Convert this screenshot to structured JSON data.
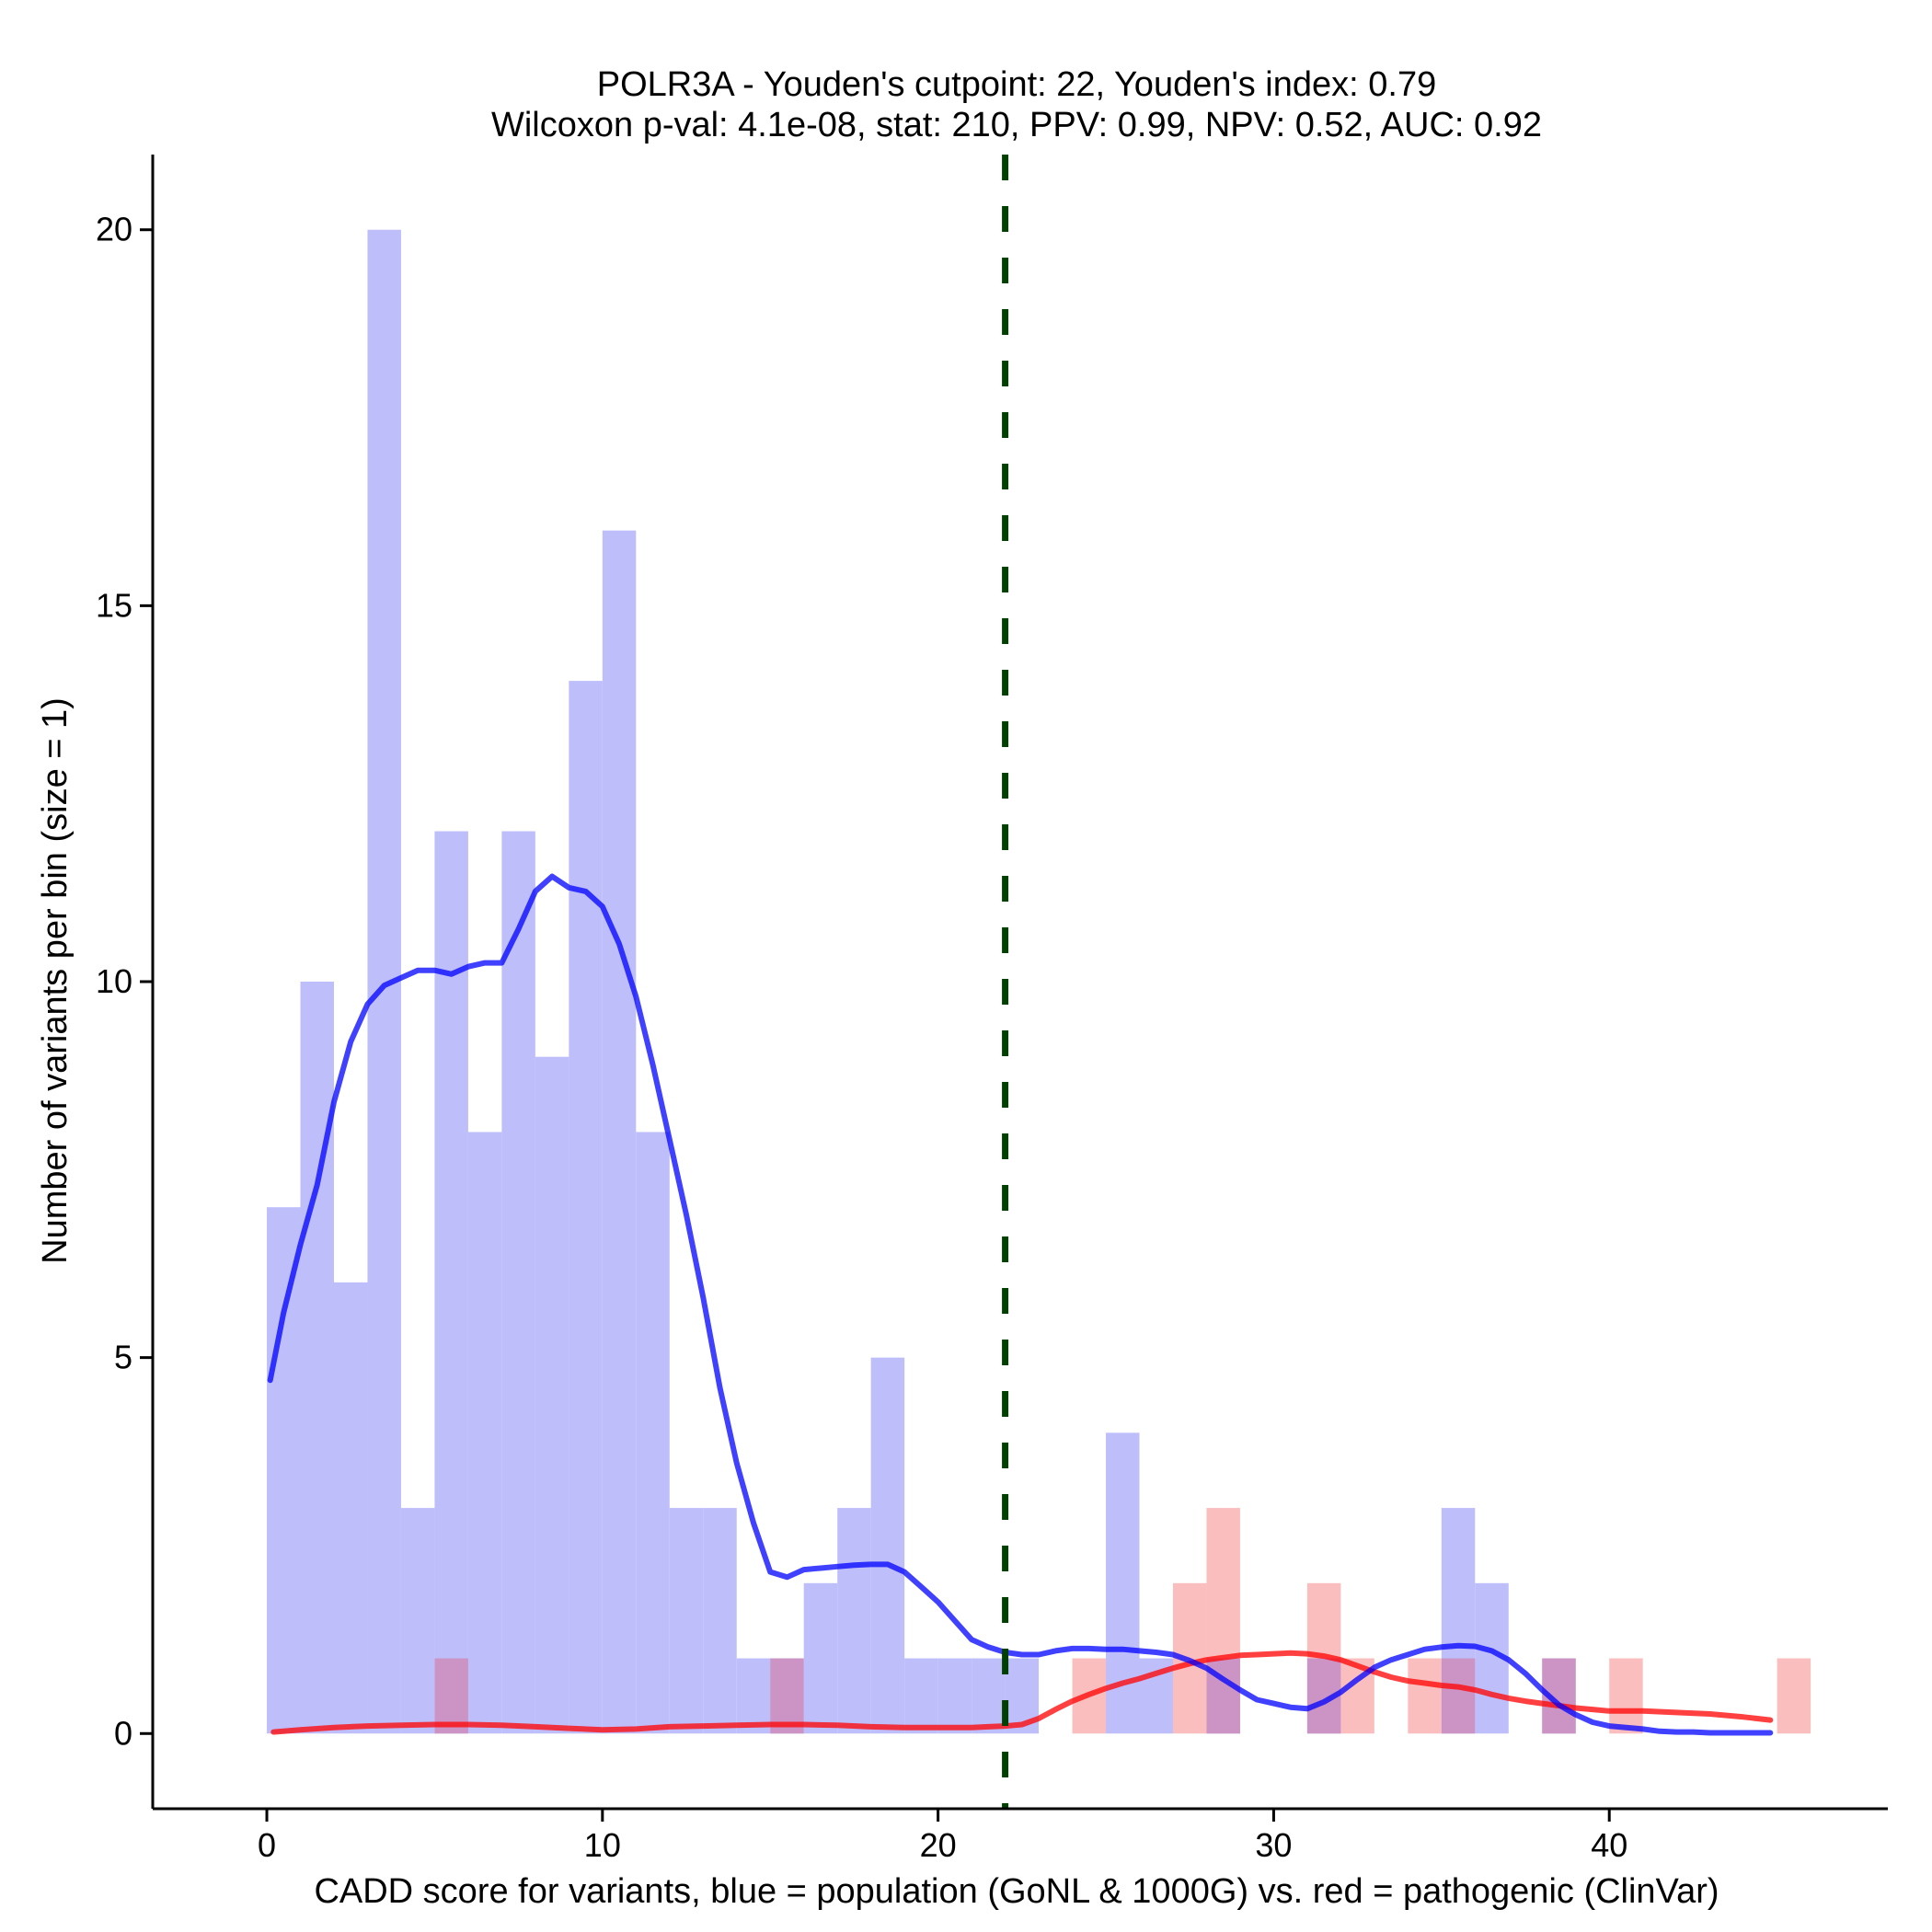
{
  "chart_data": {
    "type": "bar",
    "title": "POLR3A - Youden's cutpoint: 22, Youden's index: 0.79",
    "subtitle": "Wilcoxon p-val: 4.1e-08, stat: 210, PPV: 0.99, NPV: 0.52, AUC: 0.92",
    "xlabel": "CADD score for variants, blue = population (GoNL & 1000G) vs. red = pathogenic (ClinVar)",
    "ylabel": "Number of variants per bin (size = 1)",
    "xlim": [
      -3.4,
      48.3
    ],
    "ylim": [
      -1,
      21
    ],
    "xticks": [
      0,
      10,
      20,
      30,
      40
    ],
    "yticks": [
      0,
      5,
      10,
      15,
      20
    ],
    "bin_width": 1,
    "cutpoint": 22,
    "colors": {
      "population": "#0000ff",
      "pathogenic": "#ff0000",
      "cutpoint": "#004000",
      "population_fill": "#bebefb",
      "pathogenic_fill": "#fbbebe",
      "overlap_fill": "#cc94c4"
    },
    "series": [
      {
        "name": "population (GoNL & 1000G)",
        "bins": [
          [
            0,
            7
          ],
          [
            1,
            10
          ],
          [
            2,
            6
          ],
          [
            3,
            20
          ],
          [
            4,
            3
          ],
          [
            5,
            12
          ],
          [
            6,
            8
          ],
          [
            7,
            12
          ],
          [
            8,
            9
          ],
          [
            9,
            14
          ],
          [
            10,
            16
          ],
          [
            11,
            8
          ],
          [
            12,
            3
          ],
          [
            13,
            3
          ],
          [
            14,
            1
          ],
          [
            15,
            1
          ],
          [
            16,
            2
          ],
          [
            17,
            3
          ],
          [
            18,
            5
          ],
          [
            19,
            1
          ],
          [
            20,
            1
          ],
          [
            21,
            1
          ],
          [
            22,
            1
          ],
          [
            25,
            4
          ],
          [
            26,
            1
          ],
          [
            28,
            1
          ],
          [
            31,
            1
          ],
          [
            35,
            3
          ],
          [
            36,
            2
          ],
          [
            38,
            1
          ]
        ],
        "density": [
          [
            0.1,
            4.7
          ],
          [
            0.5,
            5.6
          ],
          [
            1,
            6.5
          ],
          [
            1.5,
            7.3
          ],
          [
            2,
            8.4
          ],
          [
            2.5,
            9.2
          ],
          [
            3,
            9.7
          ],
          [
            3.5,
            9.95
          ],
          [
            4,
            10.05
          ],
          [
            4.5,
            10.15
          ],
          [
            5,
            10.15
          ],
          [
            5.5,
            10.1
          ],
          [
            6,
            10.2
          ],
          [
            6.5,
            10.25
          ],
          [
            7,
            10.25
          ],
          [
            7.5,
            10.7
          ],
          [
            8,
            11.2
          ],
          [
            8.5,
            11.4
          ],
          [
            9,
            11.25
          ],
          [
            9.5,
            11.2
          ],
          [
            10,
            11.0
          ],
          [
            10.5,
            10.5
          ],
          [
            11,
            9.8
          ],
          [
            11.5,
            8.9
          ],
          [
            12,
            7.9
          ],
          [
            12.5,
            6.9
          ],
          [
            13,
            5.8
          ],
          [
            13.5,
            4.6
          ],
          [
            14,
            3.6
          ],
          [
            14.5,
            2.8
          ],
          [
            15,
            2.15
          ],
          [
            15.5,
            2.08
          ],
          [
            16,
            2.18
          ],
          [
            16.5,
            2.2
          ],
          [
            17,
            2.22
          ],
          [
            17.5,
            2.24
          ],
          [
            18,
            2.25
          ],
          [
            18.5,
            2.25
          ],
          [
            19,
            2.15
          ],
          [
            19.5,
            1.95
          ],
          [
            20,
            1.75
          ],
          [
            20.5,
            1.5
          ],
          [
            21,
            1.25
          ],
          [
            21.5,
            1.15
          ],
          [
            22,
            1.08
          ],
          [
            22.5,
            1.05
          ],
          [
            23,
            1.05
          ],
          [
            23.5,
            1.1
          ],
          [
            24,
            1.13
          ],
          [
            24.5,
            1.13
          ],
          [
            25,
            1.12
          ],
          [
            25.5,
            1.12
          ],
          [
            26,
            1.1
          ],
          [
            26.5,
            1.08
          ],
          [
            27,
            1.05
          ],
          [
            27.5,
            0.97
          ],
          [
            28,
            0.87
          ],
          [
            28.5,
            0.72
          ],
          [
            29,
            0.58
          ],
          [
            29.5,
            0.45
          ],
          [
            30,
            0.4
          ],
          [
            30.5,
            0.35
          ],
          [
            31,
            0.33
          ],
          [
            31.5,
            0.42
          ],
          [
            32,
            0.55
          ],
          [
            32.5,
            0.72
          ],
          [
            33,
            0.88
          ],
          [
            33.5,
            0.98
          ],
          [
            34,
            1.05
          ],
          [
            34.5,
            1.12
          ],
          [
            35,
            1.15
          ],
          [
            35.5,
            1.17
          ],
          [
            36,
            1.16
          ],
          [
            36.5,
            1.1
          ],
          [
            37,
            0.98
          ],
          [
            37.5,
            0.8
          ],
          [
            38,
            0.58
          ],
          [
            38.5,
            0.38
          ],
          [
            39,
            0.25
          ],
          [
            39.5,
            0.15
          ],
          [
            40,
            0.1
          ],
          [
            40.5,
            0.08
          ],
          [
            41,
            0.06
          ],
          [
            41.5,
            0.03
          ],
          [
            42,
            0.02
          ],
          [
            42.5,
            0.02
          ],
          [
            43,
            0.01
          ],
          [
            43.5,
            0.01
          ],
          [
            44,
            0.01
          ],
          [
            44.8,
            0.01
          ]
        ]
      },
      {
        "name": "pathogenic (ClinVar)",
        "bins": [
          [
            5,
            1
          ],
          [
            15,
            1
          ],
          [
            24,
            1
          ],
          [
            27,
            2
          ],
          [
            28,
            3
          ],
          [
            31,
            2
          ],
          [
            32,
            1
          ],
          [
            34,
            1
          ],
          [
            35,
            1
          ],
          [
            38,
            1
          ],
          [
            40,
            1
          ],
          [
            45,
            1
          ]
        ],
        "density": [
          [
            0.2,
            0.02
          ],
          [
            1,
            0.05
          ],
          [
            2,
            0.08
          ],
          [
            3,
            0.1
          ],
          [
            4,
            0.11
          ],
          [
            5,
            0.12
          ],
          [
            6,
            0.12
          ],
          [
            7,
            0.11
          ],
          [
            8,
            0.09
          ],
          [
            9,
            0.07
          ],
          [
            10,
            0.05
          ],
          [
            11,
            0.06
          ],
          [
            12,
            0.09
          ],
          [
            13,
            0.1
          ],
          [
            14,
            0.11
          ],
          [
            15,
            0.12
          ],
          [
            16,
            0.12
          ],
          [
            17,
            0.11
          ],
          [
            18,
            0.09
          ],
          [
            19,
            0.08
          ],
          [
            20,
            0.08
          ],
          [
            21,
            0.08
          ],
          [
            21.5,
            0.09
          ],
          [
            22,
            0.1
          ],
          [
            22.5,
            0.12
          ],
          [
            23,
            0.2
          ],
          [
            23.5,
            0.32
          ],
          [
            24,
            0.43
          ],
          [
            24.5,
            0.52
          ],
          [
            25,
            0.6
          ],
          [
            25.5,
            0.67
          ],
          [
            26,
            0.73
          ],
          [
            26.5,
            0.8
          ],
          [
            27,
            0.87
          ],
          [
            27.5,
            0.93
          ],
          [
            28,
            0.98
          ],
          [
            28.5,
            1.01
          ],
          [
            29,
            1.04
          ],
          [
            29.5,
            1.05
          ],
          [
            30,
            1.06
          ],
          [
            30.5,
            1.07
          ],
          [
            31,
            1.06
          ],
          [
            31.5,
            1.03
          ],
          [
            32,
            0.98
          ],
          [
            32.5,
            0.9
          ],
          [
            33,
            0.82
          ],
          [
            33.5,
            0.75
          ],
          [
            34,
            0.7
          ],
          [
            34.5,
            0.67
          ],
          [
            35,
            0.64
          ],
          [
            35.5,
            0.62
          ],
          [
            36,
            0.58
          ],
          [
            36.5,
            0.52
          ],
          [
            37,
            0.47
          ],
          [
            37.5,
            0.43
          ],
          [
            38,
            0.4
          ],
          [
            38.5,
            0.37
          ],
          [
            39,
            0.34
          ],
          [
            39.5,
            0.32
          ],
          [
            40,
            0.3
          ],
          [
            41,
            0.3
          ],
          [
            42,
            0.28
          ],
          [
            43,
            0.26
          ],
          [
            44,
            0.22
          ],
          [
            44.8,
            0.18
          ]
        ]
      }
    ]
  }
}
